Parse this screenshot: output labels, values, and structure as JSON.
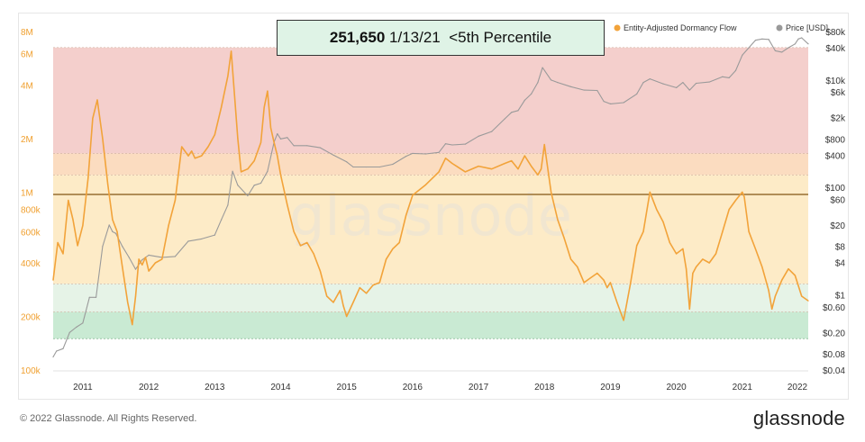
{
  "callout": {
    "value": "251,650",
    "date": "1/13/21",
    "note": "<5th Percentile"
  },
  "footer": {
    "copyright": "© 2022 Glassnode. All Rights Reserved.",
    "logo": "glassnode"
  },
  "watermark": "glassnode",
  "colors": {
    "dormancy_flow": "#f2a33a",
    "price": "#9a9a9a",
    "band_red": "#f4cfcc",
    "band_orange": "#fbdcc0",
    "band_yellow": "#fdebc7",
    "band_light_green": "#e6f3e7",
    "band_green": "#c9ead3",
    "reference_line": "#b08d57"
  },
  "chart_data": {
    "type": "line",
    "x_ticks": [
      "2011",
      "2012",
      "2013",
      "2014",
      "2015",
      "2016",
      "2017",
      "2018",
      "2019",
      "2020",
      "2021",
      "2022"
    ],
    "y_left": {
      "scale": "log",
      "ticks": [
        "100k",
        "200k",
        "400k",
        "600k",
        "800k",
        "1M",
        "2M",
        "4M",
        "6M",
        "8M"
      ],
      "ylim": [
        100000,
        8000000
      ]
    },
    "y_right": {
      "scale": "log",
      "ticks": [
        "$0.04",
        "$0.08",
        "$0.20",
        "$0.60",
        "$1",
        "$4",
        "$8",
        "$20",
        "$60",
        "$100",
        "$400",
        "$800",
        "$2k",
        "$6k",
        "$10k",
        "$40k",
        "$80k"
      ],
      "ylim": [
        0.04,
        80000
      ]
    },
    "legend": [
      {
        "name": "Entity-Adjusted Dormancy Flow",
        "color": "#f2a33a"
      },
      {
        "name": "Price [USD]",
        "color": "#9a9a9a"
      }
    ],
    "legend_position": "top-right",
    "bands": [
      {
        "from": 1650000,
        "to": 6500000,
        "color": "#f4cfcc"
      },
      {
        "from": 1250000,
        "to": 1650000,
        "color": "#fbdcc0"
      },
      {
        "from": 305000,
        "to": 1250000,
        "color": "#fdebc7"
      },
      {
        "from": 212000,
        "to": 305000,
        "color": "#e6f3e7"
      },
      {
        "from": 150000,
        "to": 212000,
        "color": "#c9ead3"
      }
    ],
    "reference_line": 970000,
    "series": [
      {
        "name": "Entity-Adjusted Dormancy Flow",
        "axis": "left",
        "x": [
          2010.55,
          2010.62,
          2010.7,
          2010.78,
          2010.85,
          2010.92,
          2011.0,
          2011.08,
          2011.15,
          2011.22,
          2011.3,
          2011.38,
          2011.45,
          2011.52,
          2011.6,
          2011.68,
          2011.75,
          2011.8,
          2011.85,
          2011.9,
          2011.95,
          2012.0,
          2012.1,
          2012.2,
          2012.3,
          2012.4,
          2012.5,
          2012.6,
          2012.65,
          2012.7,
          2012.8,
          2012.9,
          2013.0,
          2013.1,
          2013.2,
          2013.25,
          2013.3,
          2013.35,
          2013.4,
          2013.5,
          2013.6,
          2013.7,
          2013.75,
          2013.8,
          2013.85,
          2013.9,
          2013.95,
          2014.0,
          2014.1,
          2014.2,
          2014.3,
          2014.4,
          2014.5,
          2014.6,
          2014.7,
          2014.8,
          2014.9,
          2014.95,
          2015.0,
          2015.1,
          2015.2,
          2015.3,
          2015.4,
          2015.5,
          2015.6,
          2015.7,
          2015.8,
          2015.9,
          2016.0,
          2016.2,
          2016.4,
          2016.5,
          2016.6,
          2016.8,
          2017.0,
          2017.2,
          2017.4,
          2017.5,
          2017.6,
          2017.7,
          2017.8,
          2017.9,
          2017.95,
          2018.0,
          2018.1,
          2018.2,
          2018.3,
          2018.4,
          2018.5,
          2018.6,
          2018.7,
          2018.8,
          2018.9,
          2018.95,
          2019.0,
          2019.1,
          2019.2,
          2019.3,
          2019.4,
          2019.5,
          2019.6,
          2019.7,
          2019.8,
          2019.9,
          2020.0,
          2020.1,
          2020.15,
          2020.2,
          2020.25,
          2020.3,
          2020.4,
          2020.5,
          2020.6,
          2020.7,
          2020.8,
          2020.9,
          2021.0,
          2021.03,
          2021.1,
          2021.2,
          2021.3,
          2021.4,
          2021.45,
          2021.5,
          2021.6,
          2021.7,
          2021.8,
          2021.9,
          2022.0
        ],
        "y": [
          320000,
          520000,
          450000,
          900000,
          700000,
          500000,
          650000,
          1200000,
          2600000,
          3300000,
          2000000,
          1100000,
          700000,
          600000,
          380000,
          240000,
          180000,
          260000,
          420000,
          390000,
          430000,
          360000,
          400000,
          420000,
          650000,
          900000,
          1800000,
          1600000,
          1700000,
          1550000,
          1600000,
          1800000,
          2100000,
          3000000,
          4500000,
          6200000,
          3500000,
          2000000,
          1300000,
          1350000,
          1500000,
          1900000,
          3000000,
          3700000,
          2300000,
          1900000,
          1600000,
          1250000,
          850000,
          600000,
          500000,
          520000,
          450000,
          360000,
          260000,
          240000,
          280000,
          230000,
          200000,
          240000,
          290000,
          270000,
          300000,
          310000,
          420000,
          480000,
          520000,
          740000,
          960000,
          1100000,
          1300000,
          1550000,
          1450000,
          1300000,
          1400000,
          1350000,
          1450000,
          1500000,
          1350000,
          1600000,
          1400000,
          1250000,
          1350000,
          1850000,
          1000000,
          700000,
          550000,
          420000,
          380000,
          310000,
          330000,
          350000,
          320000,
          290000,
          310000,
          240000,
          190000,
          300000,
          500000,
          600000,
          1000000,
          800000,
          680000,
          520000,
          450000,
          480000,
          370000,
          220000,
          350000,
          380000,
          420000,
          400000,
          450000,
          600000,
          800000,
          900000,
          1000000,
          940000,
          600000,
          480000,
          380000,
          280000,
          220000,
          260000,
          320000,
          370000,
          340000,
          260000,
          245000
        ],
        "color": "#f2a33a"
      },
      {
        "name": "Price [USD]",
        "axis": "right",
        "x": [
          2010.55,
          2010.6,
          2010.7,
          2010.8,
          2010.9,
          2011.0,
          2011.1,
          2011.2,
          2011.3,
          2011.4,
          2011.45,
          2011.5,
          2011.6,
          2011.7,
          2011.8,
          2011.9,
          2012.0,
          2012.2,
          2012.4,
          2012.6,
          2012.8,
          2013.0,
          2013.1,
          2013.2,
          2013.27,
          2013.35,
          2013.5,
          2013.6,
          2013.7,
          2013.8,
          2013.9,
          2013.95,
          2014.0,
          2014.1,
          2014.2,
          2014.4,
          2014.6,
          2014.8,
          2015.0,
          2015.1,
          2015.3,
          2015.5,
          2015.7,
          2015.9,
          2016.0,
          2016.2,
          2016.4,
          2016.5,
          2016.6,
          2016.8,
          2017.0,
          2017.2,
          2017.4,
          2017.5,
          2017.6,
          2017.7,
          2017.8,
          2017.9,
          2017.97,
          2018.1,
          2018.2,
          2018.4,
          2018.6,
          2018.8,
          2018.9,
          2019.0,
          2019.2,
          2019.4,
          2019.5,
          2019.6,
          2019.8,
          2020.0,
          2020.1,
          2020.2,
          2020.3,
          2020.5,
          2020.7,
          2020.8,
          2020.9,
          2021.0,
          2021.1,
          2021.2,
          2021.3,
          2021.4,
          2021.5,
          2021.6,
          2021.7,
          2021.8,
          2021.85,
          2021.9,
          2022.0
        ],
        "y": [
          0.07,
          0.09,
          0.1,
          0.2,
          0.25,
          0.3,
          0.9,
          0.9,
          8,
          20,
          15,
          14,
          8,
          5,
          3,
          4.5,
          5.5,
          5,
          5.2,
          10,
          11,
          13,
          25,
          47,
          200,
          110,
          70,
          110,
          120,
          200,
          700,
          1000,
          800,
          850,
          600,
          600,
          550,
          400,
          300,
          240,
          240,
          240,
          270,
          380,
          430,
          420,
          450,
          650,
          620,
          640,
          900,
          1100,
          1900,
          2500,
          2700,
          4200,
          5500,
          9000,
          17000,
          10000,
          9000,
          7500,
          6500,
          6400,
          4000,
          3600,
          3800,
          5500,
          9000,
          10500,
          8500,
          7200,
          9000,
          6500,
          8700,
          9200,
          11500,
          11000,
          15000,
          29000,
          40000,
          55000,
          58000,
          57000,
          35000,
          33000,
          40000,
          47000,
          58000,
          61000,
          47000
        ],
        "color": "#9a9a9a"
      }
    ]
  }
}
